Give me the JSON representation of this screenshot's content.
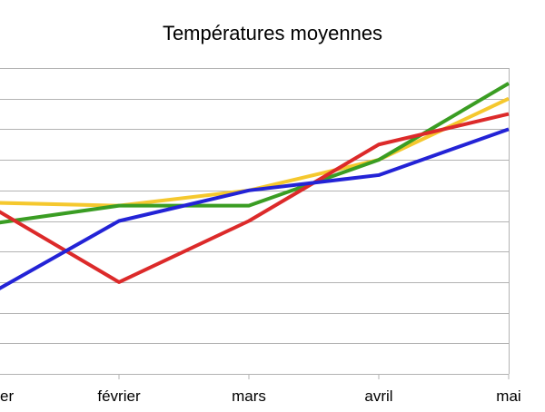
{
  "chart_data": {
    "type": "line",
    "title": "Températures moyennes",
    "xlabel": "",
    "ylabel": "",
    "categories": [
      "janvier",
      "février",
      "mars",
      "avril",
      "mai"
    ],
    "visible_category_labels": [
      "er",
      "février",
      "mars",
      "avril",
      "mai"
    ],
    "ylim": [
      0,
      10
    ],
    "grid": true,
    "series": [
      {
        "color": "#f5c82e",
        "values": [
          5.6,
          5.5,
          6.0,
          7.0,
          9.0
        ]
      },
      {
        "color": "#3a9d23",
        "values": [
          4.9,
          5.5,
          5.5,
          7.0,
          9.5
        ]
      },
      {
        "color": "#dc2a2a",
        "values": [
          5.5,
          3.0,
          5.0,
          7.5,
          8.5
        ]
      },
      {
        "color": "#2323d6",
        "values": [
          2.6,
          5.0,
          6.0,
          6.5,
          8.0
        ]
      }
    ]
  }
}
